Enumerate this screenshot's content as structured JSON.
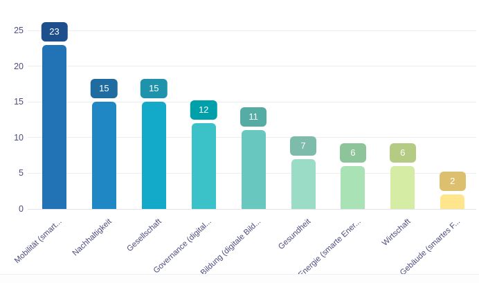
{
  "chart_data": {
    "type": "bar",
    "title": "",
    "xlabel": "",
    "ylabel": "",
    "categories": [
      "Mobilität (smart...",
      "Nachhaltigkeit",
      "Gesellschaft",
      "Governance (digital...",
      "Bildung (digitale Bild...",
      "Gesundheit",
      "Energie (smarte Ener...",
      "Wirtschaft",
      "Gebäude (smartes F..."
    ],
    "values": [
      23,
      15,
      15,
      12,
      11,
      7,
      6,
      6,
      2
    ],
    "y_ticks": [
      0,
      5,
      10,
      15,
      20,
      25
    ],
    "ylim": [
      0,
      25
    ],
    "grid": true,
    "legend_position": "none",
    "bar_colors": [
      "#2273B6",
      "#1F87C3",
      "#13A9C9",
      "#3BC1C8",
      "#68C8C0",
      "#9BDCC6",
      "#A9E2B4",
      "#D4ECA4",
      "#FFE68C"
    ],
    "badge_colors": [
      "#1D4F8C",
      "#1E6CA0",
      "#1E93AB",
      "#00A0AB",
      "#55ACA5",
      "#7DBCAB",
      "#8DC49A",
      "#B3CB82",
      "#DDC06F"
    ],
    "value_label_text_color": "#FFFFFF",
    "axis_text_color": "#4C4C7E",
    "gridline_color": "#ECECF1",
    "baseline_color": "#E2E2EA",
    "background_color": "#FFFFFF"
  }
}
